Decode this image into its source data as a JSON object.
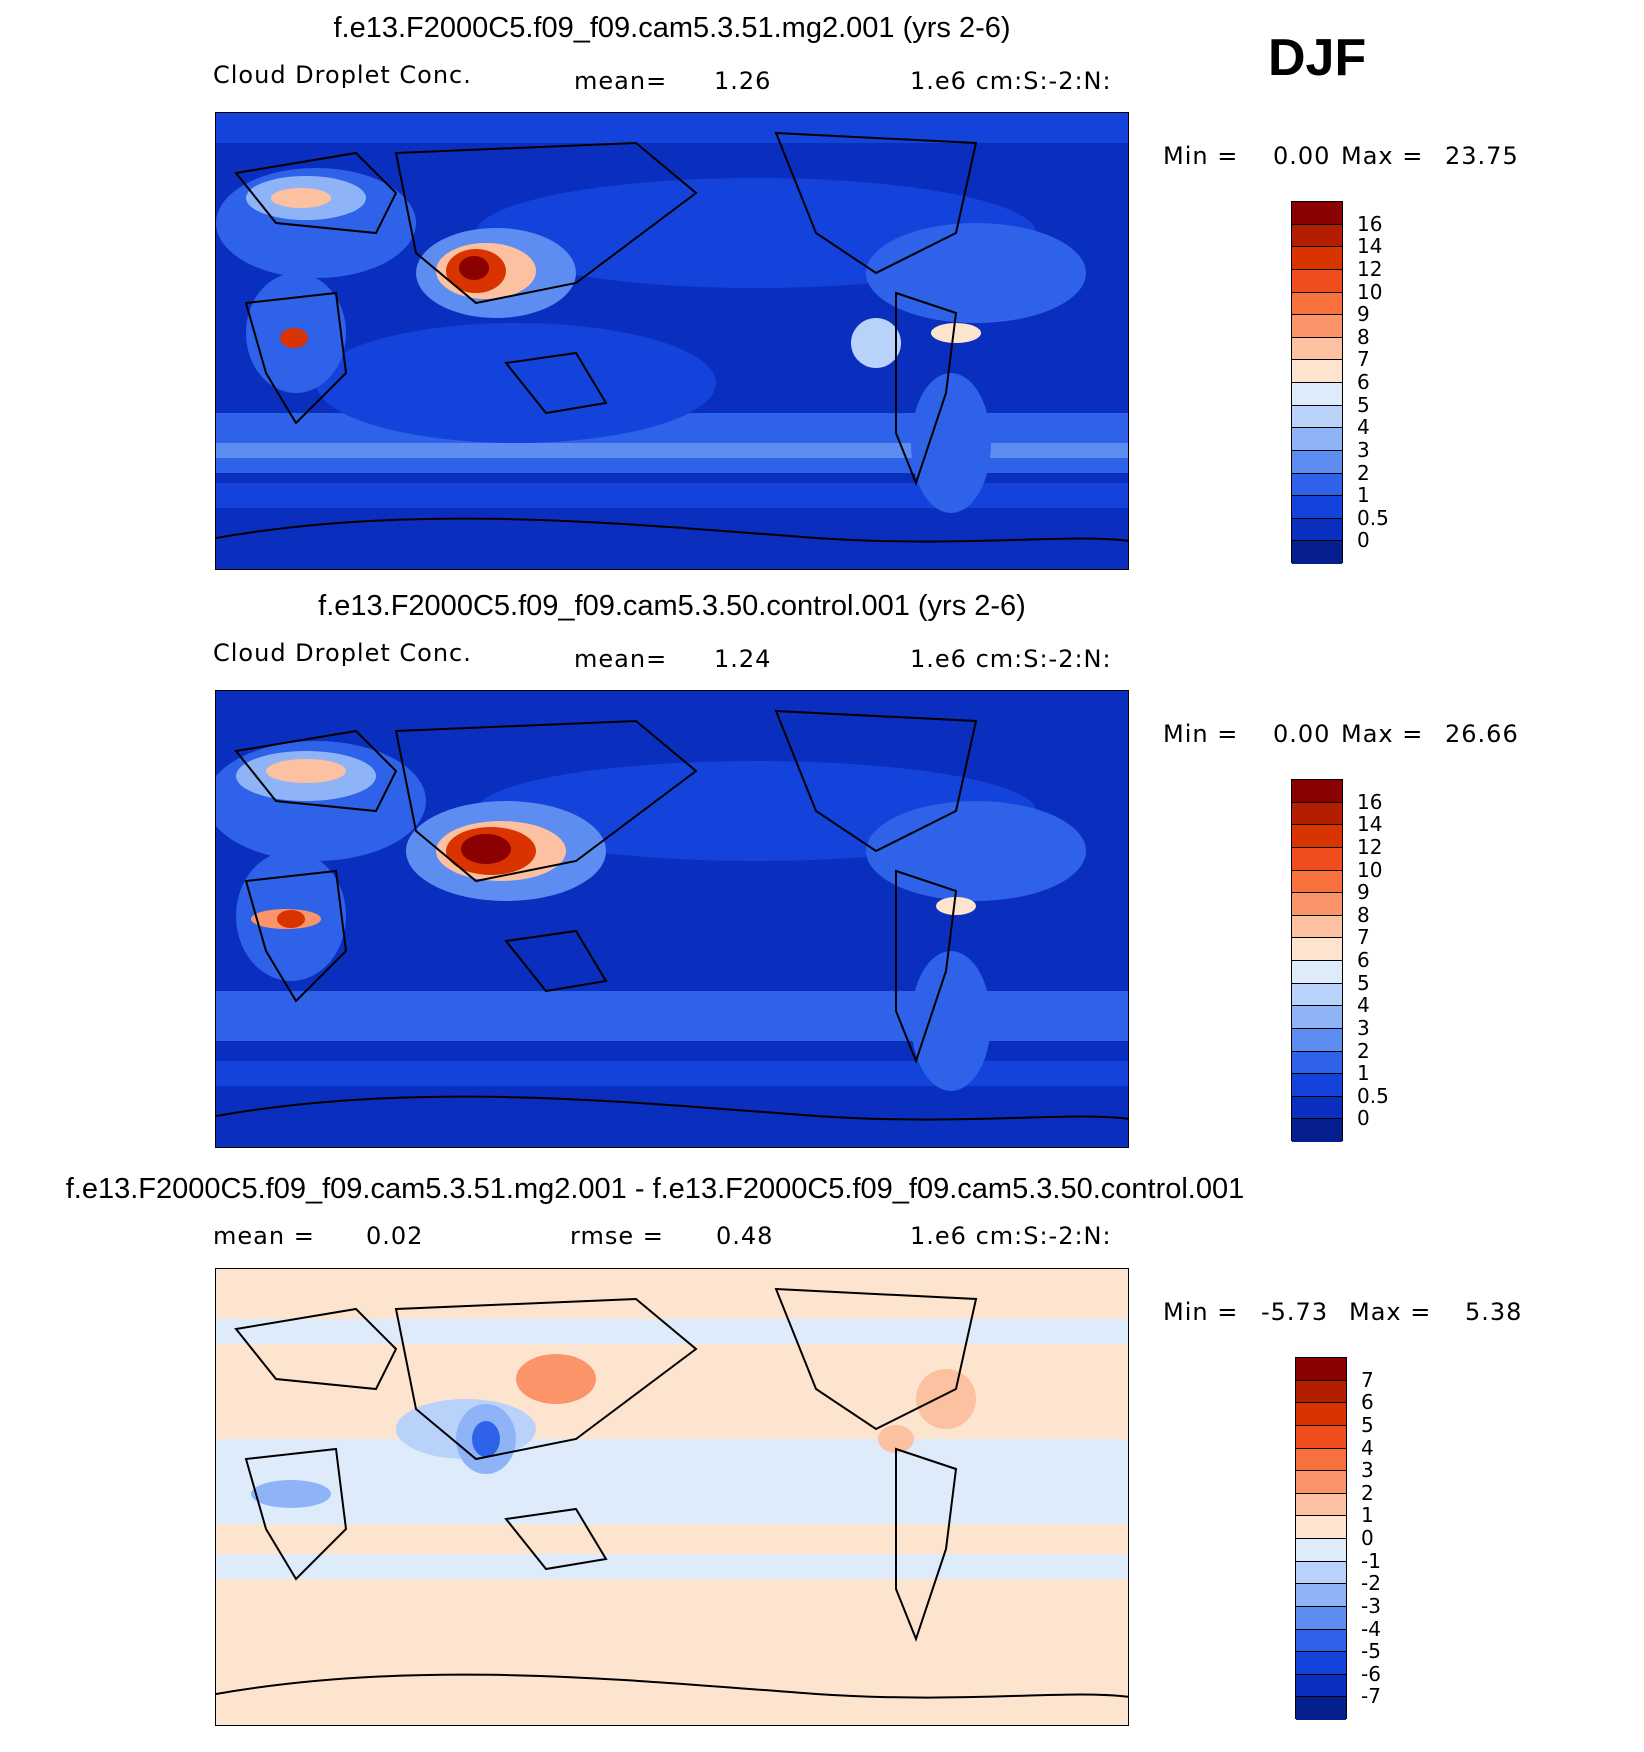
{
  "season": "DJF",
  "panels": [
    {
      "title": "f.e13.F2000C5.f09_f09.cam5.3.51.mg2.001 (yrs 2-6)",
      "left_label": "Cloud Droplet Conc.",
      "mid_label": "mean=",
      "mid_value": "1.26",
      "right_label": "1.e6 cm:S:-2:N:",
      "min_label": "Min =",
      "min_value": "0.00",
      "max_label": "Max =",
      "max_value": "23.75",
      "colorbar": {
        "levels": [
          "16",
          "14",
          "12",
          "10",
          "9",
          "8",
          "7",
          "6",
          "5",
          "4",
          "3",
          "2",
          "1",
          "0.5",
          "0"
        ],
        "colors": [
          "#8b0000",
          "#b31d00",
          "#d93300",
          "#ef4d1c",
          "#f8713d",
          "#fb9468",
          "#fcc1a0",
          "#fde4cf",
          "#ddebfb",
          "#b8d2fa",
          "#8eb4f7",
          "#5e8df1",
          "#2e62e8",
          "#1343db",
          "#0a2fbf",
          "#061f8e"
        ]
      }
    },
    {
      "title": "f.e13.F2000C5.f09_f09.cam5.3.50.control.001 (yrs 2-6)",
      "left_label": "Cloud Droplet Conc.",
      "mid_label": "mean=",
      "mid_value": "1.24",
      "right_label": "1.e6 cm:S:-2:N:",
      "min_label": "Min =",
      "min_value": "0.00",
      "max_label": "Max =",
      "max_value": "26.66",
      "colorbar": {
        "levels": [
          "16",
          "14",
          "12",
          "10",
          "9",
          "8",
          "7",
          "6",
          "5",
          "4",
          "3",
          "2",
          "1",
          "0.5",
          "0"
        ],
        "colors": [
          "#8b0000",
          "#b31d00",
          "#d93300",
          "#ef4d1c",
          "#f8713d",
          "#fb9468",
          "#fcc1a0",
          "#fde4cf",
          "#ddebfb",
          "#b8d2fa",
          "#8eb4f7",
          "#5e8df1",
          "#2e62e8",
          "#1343db",
          "#0a2fbf",
          "#061f8e"
        ]
      }
    },
    {
      "title": "f.e13.F2000C5.f09_f09.cam5.3.51.mg2.001 - f.e13.F2000C5.f09_f09.cam5.3.50.control.001",
      "left_label": "mean =",
      "left_value": "0.02",
      "mid_label": "rmse =",
      "mid_value": "0.48",
      "right_label": "1.e6 cm:S:-2:N:",
      "min_label": "Min =",
      "min_value": "-5.73",
      "max_label": "Max =",
      "max_value": "5.38",
      "colorbar": {
        "levels": [
          "7",
          "6",
          "5",
          "4",
          "3",
          "2",
          "1",
          "0",
          "-1",
          "-2",
          "-3",
          "-4",
          "-5",
          "-6",
          "-7"
        ],
        "colors": [
          "#8b0000",
          "#b31d00",
          "#d93300",
          "#ef4d1c",
          "#f8713d",
          "#fb9468",
          "#fcc1a0",
          "#fde4cf",
          "#ddebfb",
          "#b8d2fa",
          "#8eb4f7",
          "#5e8df1",
          "#2e62e8",
          "#1343db",
          "#0a2fbf",
          "#061f8e"
        ]
      }
    }
  ]
}
